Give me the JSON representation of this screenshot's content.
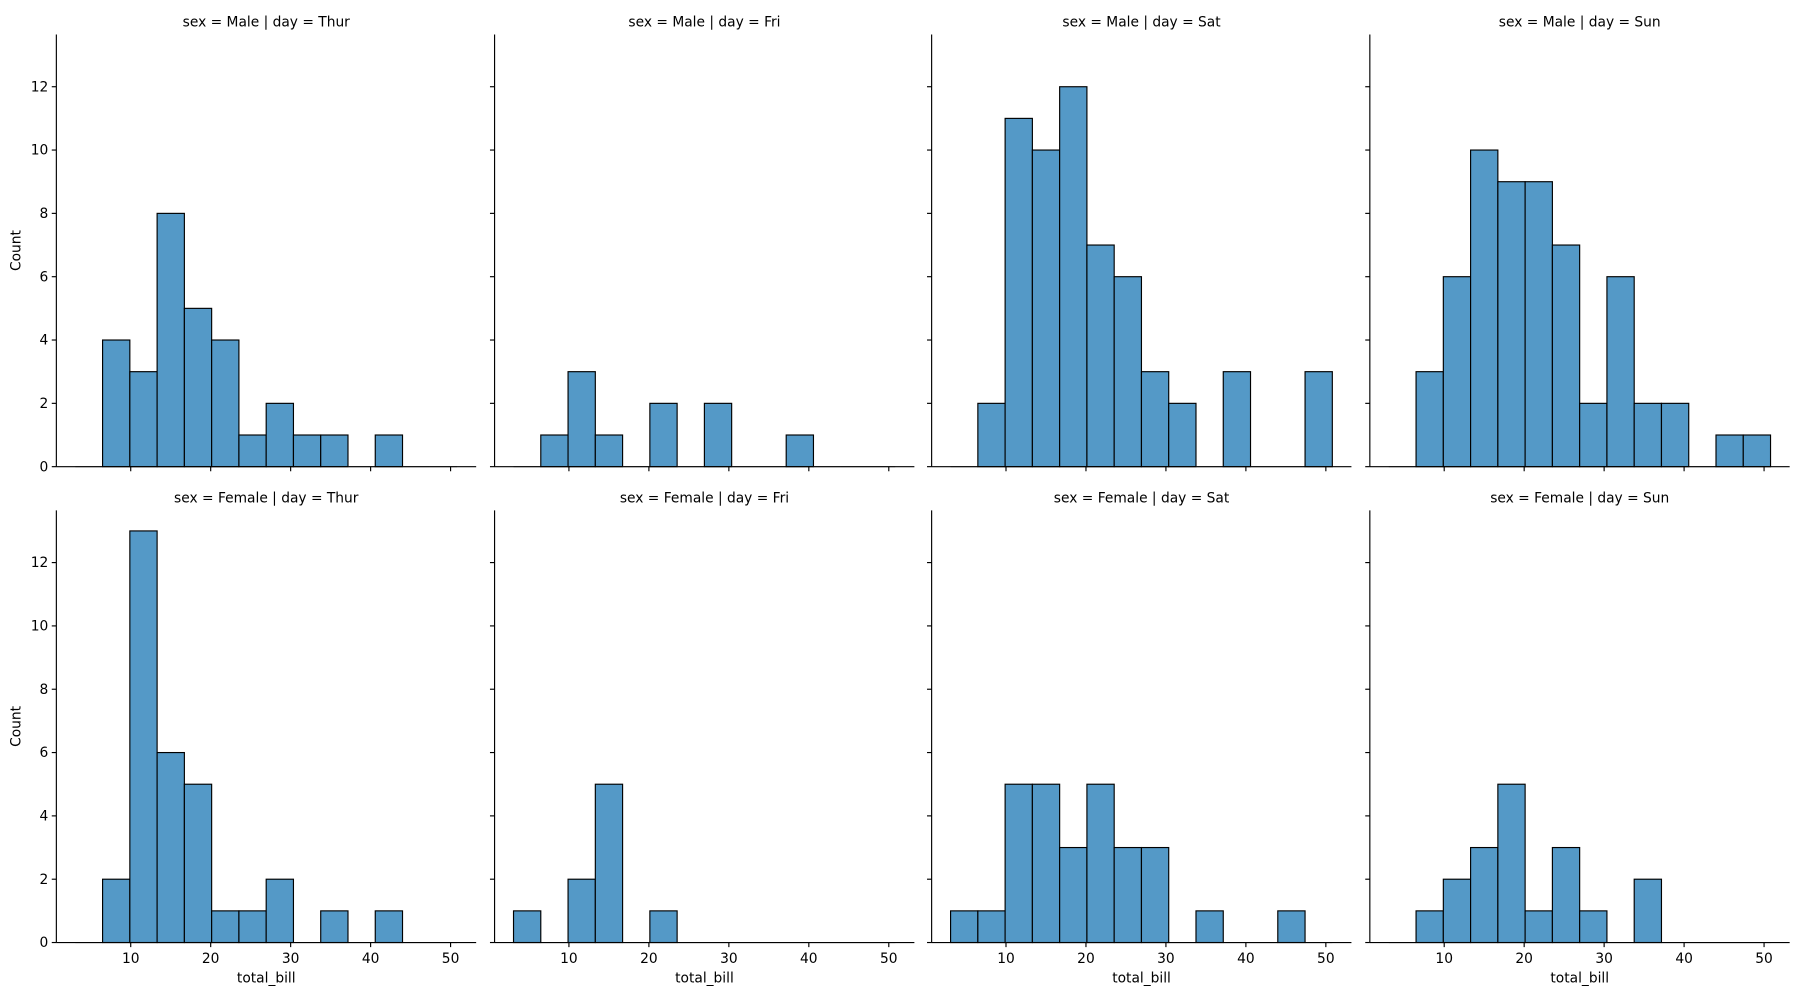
{
  "chart_data": {
    "type": "bar",
    "kind": "histogram facet grid",
    "xlabel": "total_bill",
    "ylabel": "Count",
    "bin_edges": [
      3.07,
      6.48,
      9.89,
      13.3,
      16.71,
      20.12,
      23.53,
      26.94,
      30.35,
      33.76,
      37.17,
      40.58,
      43.99,
      47.4,
      50.81
    ],
    "xlim": [
      0.7,
      53.2
    ],
    "ylim": [
      0,
      13.65
    ],
    "xticks": [
      10,
      20,
      30,
      40,
      50
    ],
    "yticks": [
      0,
      2,
      4,
      6,
      8,
      10,
      12
    ],
    "bar_color": "#5499c7",
    "edge_color": "#000000",
    "grid": false,
    "panels": [
      {
        "title": "sex = Male | day = Thur",
        "values": [
          0,
          4,
          3,
          8,
          5,
          4,
          1,
          2,
          1,
          1,
          0,
          1,
          0,
          0
        ]
      },
      {
        "title": "sex = Male | day = Fri",
        "values": [
          0,
          1,
          3,
          1,
          0,
          2,
          0,
          2,
          0,
          0,
          1,
          0,
          0,
          0
        ]
      },
      {
        "title": "sex = Male | day = Sat",
        "values": [
          0,
          2,
          11,
          10,
          12,
          7,
          6,
          3,
          2,
          0,
          3,
          0,
          0,
          3
        ]
      },
      {
        "title": "sex = Male | day = Sun",
        "values": [
          0,
          3,
          6,
          10,
          9,
          9,
          7,
          2,
          6,
          2,
          2,
          0,
          1,
          1
        ]
      },
      {
        "title": "sex = Female | day = Thur",
        "values": [
          0,
          2,
          13,
          6,
          5,
          1,
          1,
          2,
          0,
          1,
          0,
          1,
          0,
          0
        ]
      },
      {
        "title": "sex = Female | day = Fri",
        "values": [
          1,
          0,
          2,
          5,
          0,
          1,
          0,
          0,
          0,
          0,
          0,
          0,
          0,
          0
        ]
      },
      {
        "title": "sex = Female | day = Sat",
        "values": [
          1,
          1,
          5,
          5,
          3,
          5,
          3,
          3,
          0,
          1,
          0,
          0,
          1,
          0
        ]
      },
      {
        "title": "sex = Female | day = Sun",
        "values": [
          0,
          1,
          2,
          3,
          5,
          1,
          3,
          1,
          0,
          2,
          0,
          0,
          0,
          0
        ]
      }
    ]
  }
}
